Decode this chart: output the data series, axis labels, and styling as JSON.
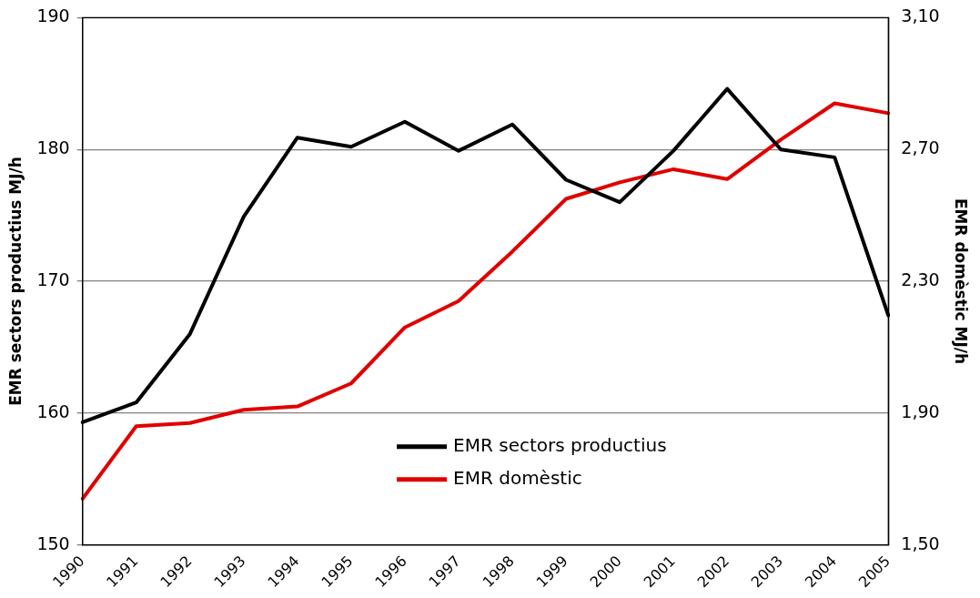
{
  "chart_data": {
    "type": "line",
    "ylabel": "EMR sectors productius MJ/h",
    "y2label": "EMR domèstic MJ/h",
    "categories": [
      "1990",
      "1991",
      "1992",
      "1993",
      "1994",
      "1995",
      "1996",
      "1997",
      "1998",
      "1999",
      "2000",
      "2001",
      "2002",
      "2003",
      "2004",
      "2005"
    ],
    "series": [
      {
        "name": "EMR sectors productius",
        "color": "#000000",
        "values": [
          159.3,
          160.8,
          166.0,
          174.9,
          180.9,
          180.2,
          182.1,
          179.9,
          181.9,
          177.7,
          176.0,
          179.9,
          184.6,
          180.0,
          179.4,
          167.4
        ]
      },
      {
        "name": "EMR domèstic",
        "color": "#e00000",
        "axis": "y2",
        "values": [
          1.64,
          1.86,
          1.87,
          1.91,
          1.92,
          1.99,
          2.16,
          2.24,
          2.39,
          2.55,
          2.6,
          2.64,
          2.61,
          2.73,
          2.84,
          2.81
        ]
      }
    ],
    "ylim": [
      150,
      190
    ],
    "yticks": [
      150,
      160,
      170,
      180,
      190
    ],
    "y2lim": [
      1.5,
      3.1
    ],
    "y2ticks": [
      {
        "value": 1.5,
        "label": "1,50"
      },
      {
        "value": 1.9,
        "label": "1,90"
      },
      {
        "value": 2.3,
        "label": "2,30"
      },
      {
        "value": 2.7,
        "label": "2,70"
      },
      {
        "value": 3.1,
        "label": "3,10"
      }
    ],
    "grid": "y",
    "legend": "bottom",
    "marker": "none",
    "line_style": "solid"
  }
}
